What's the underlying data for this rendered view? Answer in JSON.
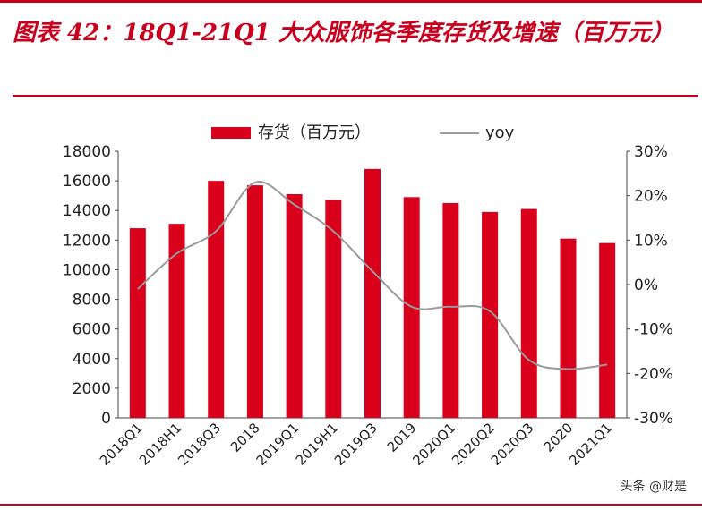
{
  "title": "图表 42：18Q1-21Q1 大众服饰各季度存货及增速（百万元）",
  "watermark": "头条 @财是",
  "colors": {
    "accent": "#c8001e",
    "bar": "#d9001b",
    "line": "#9a9a9a",
    "axis": "#444444"
  },
  "chart_data": {
    "type": "bar",
    "title": "图表 42：18Q1-21Q1 大众服饰各季度存货及增速（百万元）",
    "categories": [
      "2018Q1",
      "2018H1",
      "2018Q3",
      "2018",
      "2019Q1",
      "2019H1",
      "2019Q3",
      "2019",
      "2020Q1",
      "2020Q2",
      "2020Q3",
      "2020",
      "2021Q1"
    ],
    "series": [
      {
        "name": "存货（百万元）",
        "kind": "bar",
        "axis": "left",
        "values": [
          12800,
          13100,
          16000,
          15700,
          15100,
          14700,
          16800,
          14900,
          14500,
          13900,
          14100,
          12100,
          11800
        ]
      },
      {
        "name": "yoy",
        "kind": "line",
        "axis": "right",
        "values": [
          -1,
          7,
          12,
          23,
          18,
          12,
          3,
          -5,
          -5,
          -6,
          -17,
          -19,
          -18
        ]
      }
    ],
    "left_axis": {
      "min": 0,
      "max": 18000,
      "ticks": [
        "0",
        "2000",
        "4000",
        "6000",
        "8000",
        "10000",
        "12000",
        "14000",
        "16000",
        "18000"
      ]
    },
    "right_axis": {
      "min": -30,
      "max": 30,
      "ticks": [
        "-30%",
        "-20%",
        "-10%",
        "0%",
        "10%",
        "20%",
        "30%"
      ]
    },
    "legend_position": "top-center",
    "grid": false
  }
}
